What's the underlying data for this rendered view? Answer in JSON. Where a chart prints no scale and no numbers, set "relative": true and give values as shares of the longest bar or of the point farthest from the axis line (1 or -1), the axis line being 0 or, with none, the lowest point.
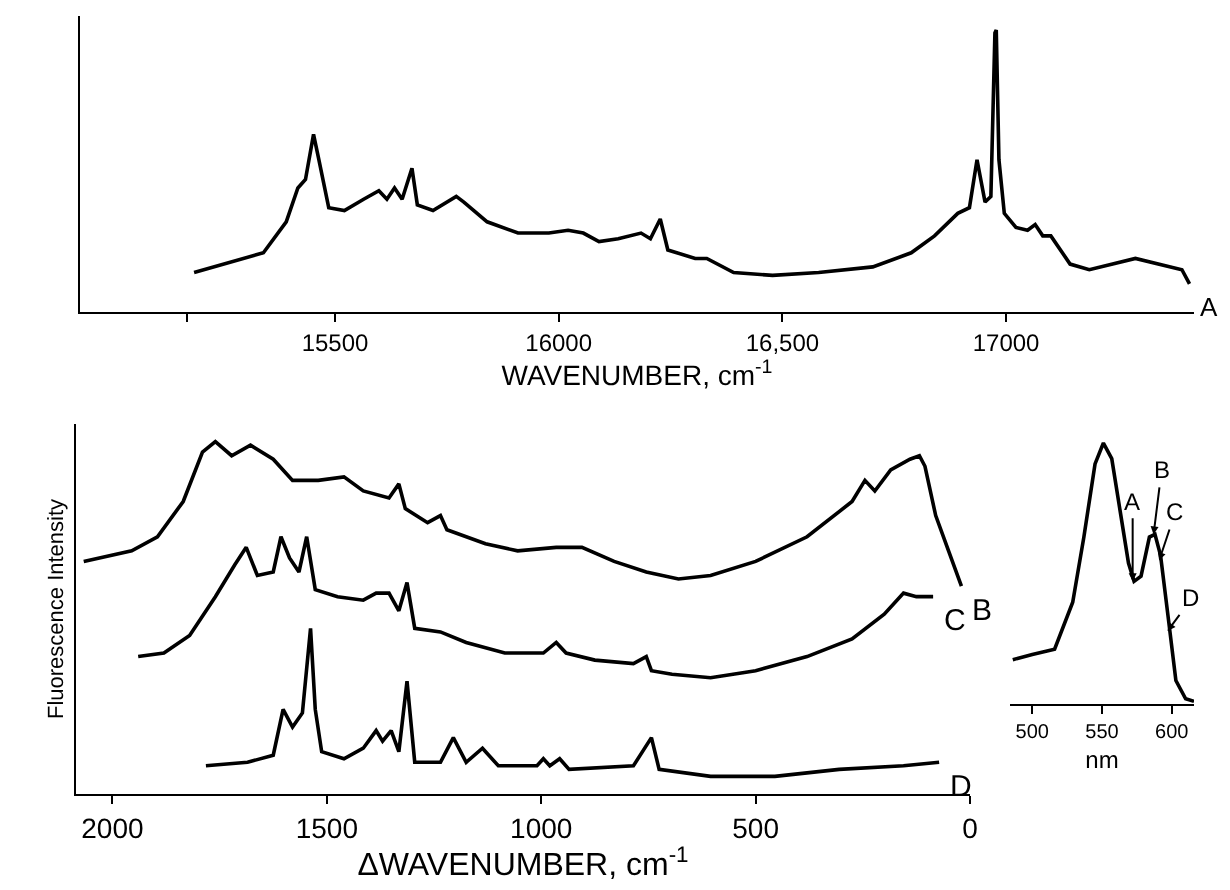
{
  "chart_data": [
    {
      "type": "line",
      "relative": true,
      "xlabel": "WAVENUMBER, cm$^{-1}$",
      "xlim": [
        14930,
        17420
      ],
      "xticks": [
        {
          "value": 15170,
          "label": null
        },
        15500,
        16000,
        {
          "value": 16500,
          "label": "16,500"
        },
        17000
      ],
      "tick_labels": "x",
      "grid": false,
      "legend": false,
      "series": [
        {
          "name": "A",
          "color": "#000000",
          "x": [
            15185,
            15340,
            15391,
            15417,
            15434,
            15452,
            15464,
            15486,
            15521,
            15564,
            15598,
            15616,
            15633,
            15650,
            15672,
            15684,
            15719,
            15771,
            15788,
            15840,
            15909,
            15978,
            16021,
            16055,
            16090,
            16133,
            16184,
            16205,
            16227,
            16244,
            16305,
            16331,
            16391,
            16478,
            16581,
            16702,
            16788,
            16840,
            16892,
            16918,
            16935,
            16953,
            16966,
            16975,
            16978,
            16984,
            16996,
            17022,
            17048,
            17065,
            17082,
            17100,
            17143,
            17186,
            17289,
            17393,
            17410
          ],
          "values": [
            0.14,
            0.21,
            0.32,
            0.44,
            0.47,
            0.63,
            0.54,
            0.37,
            0.36,
            0.4,
            0.43,
            0.4,
            0.44,
            0.4,
            0.51,
            0.38,
            0.36,
            0.41,
            0.39,
            0.32,
            0.28,
            0.28,
            0.29,
            0.28,
            0.25,
            0.26,
            0.28,
            0.26,
            0.33,
            0.22,
            0.19,
            0.19,
            0.14,
            0.13,
            0.14,
            0.16,
            0.21,
            0.27,
            0.35,
            0.37,
            0.54,
            0.39,
            0.41,
            0.99,
            1.0,
            0.54,
            0.35,
            0.3,
            0.29,
            0.31,
            0.27,
            0.27,
            0.17,
            0.15,
            0.19,
            0.15,
            0.1
          ]
        }
      ]
    },
    {
      "type": "line",
      "relative": true,
      "xlabel": "ΔWAVENUMBER, cm$^{-1}$",
      "ylabel": "Fluorescence Intensity",
      "xlim": [
        2085,
        0
      ],
      "xticks": [
        2000,
        1500,
        1000,
        500,
        0
      ],
      "tick_labels": "x",
      "grid": false,
      "legend": false,
      "series": [
        {
          "name": "B",
          "color": "#000000",
          "x": [
            2067,
            1955,
            1895,
            1835,
            1790,
            1760,
            1722,
            1678,
            1625,
            1580,
            1520,
            1460,
            1415,
            1355,
            1332,
            1317,
            1265,
            1235,
            1220,
            1130,
            1055,
            965,
            905,
            830,
            755,
            680,
            605,
            500,
            380,
            275,
            245,
            222,
            185,
            140,
            118,
            105,
            80,
            50,
            20
          ],
          "values": [
            0.66,
            0.69,
            0.73,
            0.83,
            0.97,
            1.0,
            0.96,
            0.99,
            0.95,
            0.89,
            0.89,
            0.9,
            0.86,
            0.84,
            0.88,
            0.81,
            0.77,
            0.79,
            0.75,
            0.71,
            0.69,
            0.7,
            0.7,
            0.66,
            0.63,
            0.61,
            0.62,
            0.66,
            0.73,
            0.83,
            0.89,
            0.86,
            0.92,
            0.95,
            0.96,
            0.93,
            0.79,
            0.69,
            0.59
          ]
        },
        {
          "name": "C",
          "color": "#000000",
          "x": [
            1940,
            1880,
            1820,
            1760,
            1715,
            1688,
            1662,
            1625,
            1607,
            1587,
            1565,
            1547,
            1527,
            1475,
            1415,
            1385,
            1355,
            1332,
            1313,
            1295,
            1235,
            1175,
            1085,
            995,
            965,
            942,
            875,
            785,
            755,
            743,
            695,
            605,
            500,
            380,
            275,
            200,
            155,
            125,
            95,
            86
          ],
          "values": [
            0.39,
            0.4,
            0.45,
            0.56,
            0.65,
            0.7,
            0.62,
            0.63,
            0.73,
            0.67,
            0.63,
            0.73,
            0.58,
            0.56,
            0.55,
            0.57,
            0.57,
            0.52,
            0.6,
            0.47,
            0.46,
            0.43,
            0.4,
            0.4,
            0.43,
            0.4,
            0.38,
            0.37,
            0.39,
            0.35,
            0.34,
            0.33,
            0.35,
            0.39,
            0.44,
            0.51,
            0.57,
            0.56,
            0.56,
            0.56
          ]
        },
        {
          "name": "D",
          "color": "#000000",
          "x": [
            1782,
            1685,
            1625,
            1602,
            1580,
            1557,
            1538,
            1527,
            1512,
            1460,
            1415,
            1385,
            1370,
            1350,
            1332,
            1313,
            1295,
            1235,
            1205,
            1175,
            1137,
            1100,
            1010,
            995,
            980,
            957,
            935,
            785,
            743,
            725,
            605,
            455,
            305,
            155,
            72
          ],
          "values": [
            0.08,
            0.09,
            0.11,
            0.24,
            0.19,
            0.23,
            0.47,
            0.24,
            0.12,
            0.1,
            0.13,
            0.18,
            0.15,
            0.18,
            0.12,
            0.32,
            0.09,
            0.09,
            0.16,
            0.09,
            0.13,
            0.08,
            0.08,
            0.1,
            0.08,
            0.1,
            0.07,
            0.08,
            0.16,
            0.07,
            0.05,
            0.05,
            0.07,
            0.08,
            0.09
          ]
        }
      ]
    },
    {
      "type": "line",
      "relative": true,
      "xlabel": "nm",
      "xlim": [
        484,
        616
      ],
      "xticks": [
        500,
        550,
        600
      ],
      "tick_labels": "x",
      "grid": false,
      "legend": false,
      "series": [
        {
          "color": "#000000",
          "x": [
            486,
            500,
            516,
            529,
            537,
            545,
            551,
            557,
            563,
            569,
            573,
            578,
            584,
            588,
            592,
            598,
            603,
            610,
            616
          ],
          "values": [
            0.17,
            0.19,
            0.21,
            0.39,
            0.64,
            0.92,
            1.0,
            0.94,
            0.74,
            0.54,
            0.47,
            0.49,
            0.64,
            0.65,
            0.57,
            0.31,
            0.09,
            0.02,
            0.01
          ]
        }
      ],
      "annotations": [
        {
          "text": "A",
          "x": 572,
          "y": 0.47
        },
        {
          "text": "B",
          "x": 587,
          "y": 0.65
        },
        {
          "text": "C",
          "x": 591,
          "y": 0.55
        },
        {
          "text": "D",
          "x": 597,
          "y": 0.28
        }
      ]
    }
  ]
}
